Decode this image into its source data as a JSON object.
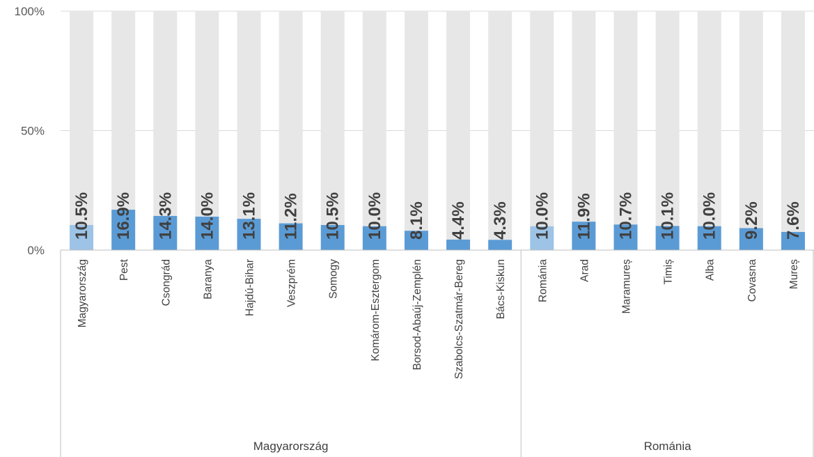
{
  "chart_data": {
    "type": "bar",
    "stacked_percent": true,
    "ylim": [
      0,
      100
    ],
    "yticks": [
      "0%",
      "50%",
      "100%"
    ],
    "grid": true,
    "groups": [
      {
        "name": "Magyarország",
        "categories": [
          "Magyarország",
          "Pest",
          "Csongrád",
          "Baranya",
          "Hajdú-Bihar",
          "Veszprém",
          "Somogy",
          "Komárom-Esztergom",
          "Borsod-Abaúj-Zemplén",
          "Szabolcs-Szatmár-Bereg",
          "Bács-Kiskun"
        ]
      },
      {
        "name": "Románia",
        "categories": [
          "Románia",
          "Arad",
          "Maramureș",
          "Timiș",
          "Alba",
          "Covasna",
          "Mureș"
        ]
      }
    ],
    "categories": [
      "Magyarország",
      "Pest",
      "Csongrád",
      "Baranya",
      "Hajdú-Bihar",
      "Veszprém",
      "Somogy",
      "Komárom-Esztergom",
      "Borsod-Abaúj-Zemplén",
      "Szabolcs-Szatmár-Bereg",
      "Bács-Kiskun",
      "Románia",
      "Arad",
      "Maramureș",
      "Timiș",
      "Alba",
      "Covasna",
      "Mureș"
    ],
    "values": [
      10.5,
      16.9,
      14.3,
      14.0,
      13.1,
      11.2,
      10.5,
      10.0,
      8.1,
      4.4,
      4.3,
      10.0,
      11.9,
      10.7,
      10.1,
      10.0,
      9.2,
      7.6
    ],
    "data_labels": [
      "10.5%",
      "16.9%",
      "14.3%",
      "14.0%",
      "13.1%",
      "11.2%",
      "10.5%",
      "10.0%",
      "8.1%",
      "4.4%",
      "4.3%",
      "10.0%",
      "11.9%",
      "10.7%",
      "10.1%",
      "10.0%",
      "9.2%",
      "7.6%"
    ],
    "highlight_indices": [
      0,
      11
    ],
    "colors": {
      "value": "#5b9bd5",
      "highlight": "#9dc3e6",
      "remainder": "#e7e7e7",
      "grid": "#d9d9d9",
      "axis": "#bfbfbf"
    }
  }
}
